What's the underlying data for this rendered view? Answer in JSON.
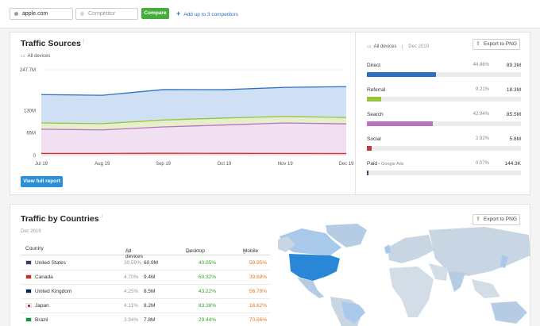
{
  "topbar": {
    "domain_value": "apple.com",
    "competitor_placeholder": "Competitor",
    "compare_label": "Compare",
    "add_label": "Add up to 3 competitors"
  },
  "traffic_sources": {
    "title": "Traffic Sources",
    "device_filter": "All devices",
    "view_full_report": "View full report",
    "export_label": "Export to PNG",
    "meta_devices": "All devices",
    "meta_date": "Dec 2019",
    "sources": [
      {
        "name": "Direct",
        "sub": "",
        "percent": "44.86%",
        "value": "89.3M",
        "share": 0.4486,
        "color": "#2b6fc2"
      },
      {
        "name": "Referral",
        "sub": "",
        "percent": "9.21%",
        "value": "18.3M",
        "share": 0.0921,
        "color": "#9ac23c"
      },
      {
        "name": "Search",
        "sub": "",
        "percent": "42.94%",
        "value": "85.5M",
        "share": 0.4294,
        "color": "#b773be"
      },
      {
        "name": "Social",
        "sub": "",
        "percent": "2.92%",
        "value": "5.8M",
        "share": 0.0292,
        "color": "#c13a3a"
      },
      {
        "name": "Paid",
        "sub": "Google Ads",
        "percent": "0.07%",
        "value": "144.3K",
        "share": 0.0007,
        "color": "#3a4a6a"
      }
    ]
  },
  "chart_data": {
    "type": "area",
    "categories": [
      "Jul 19",
      "Aug 19",
      "Sep 19",
      "Oct 19",
      "Nov 19",
      "Dec 19"
    ],
    "y_tick_labels": [
      "0",
      "65M",
      "130M",
      "247.7M"
    ],
    "ylim": [
      0,
      247.7
    ],
    "grid": true,
    "series": [
      {
        "name": "Social",
        "color": "#c13a3a",
        "fill": "#f5d9d9",
        "values": [
          6,
          6,
          6.5,
          6.2,
          6,
          5.8
        ]
      },
      {
        "name": "Search",
        "color": "#b773be",
        "fill": "#f1e0f1",
        "values": [
          70,
          68,
          76,
          82,
          88,
          85.5
        ]
      },
      {
        "name": "Referral",
        "color": "#9ac23c",
        "fill": "#e6efcc",
        "values": [
          18,
          18,
          20,
          20,
          19,
          18.3
        ]
      },
      {
        "name": "Direct",
        "color": "#2b6fc2",
        "fill": "#cfe0f4",
        "values": [
          82,
          82,
          88,
          82,
          84,
          89.3
        ]
      }
    ]
  },
  "traffic_by_countries": {
    "title": "Traffic by Countries",
    "date": "Dec 2019",
    "export_label": "Export to PNG",
    "columns": {
      "country": "Country",
      "all": "All devices",
      "desktop": "Desktop",
      "mobile": "Mobile"
    },
    "rows": [
      {
        "country": "United States",
        "share": "30.59%",
        "visits": "60.9M",
        "desktop": "40.05%",
        "mobile": "59.95%"
      },
      {
        "country": "Canada",
        "share": "4.70%",
        "visits": "9.4M",
        "desktop": "60.32%",
        "mobile": "39.68%"
      },
      {
        "country": "United Kingdom",
        "share": "4.25%",
        "visits": "8.5M",
        "desktop": "43.22%",
        "mobile": "56.78%"
      },
      {
        "country": "Japan",
        "share": "4.11%",
        "visits": "8.2M",
        "desktop": "83.38%",
        "mobile": "16.62%"
      },
      {
        "country": "Brazil",
        "share": "3.94%",
        "visits": "7.8M",
        "desktop": "29.44%",
        "mobile": "70.56%"
      }
    ]
  }
}
